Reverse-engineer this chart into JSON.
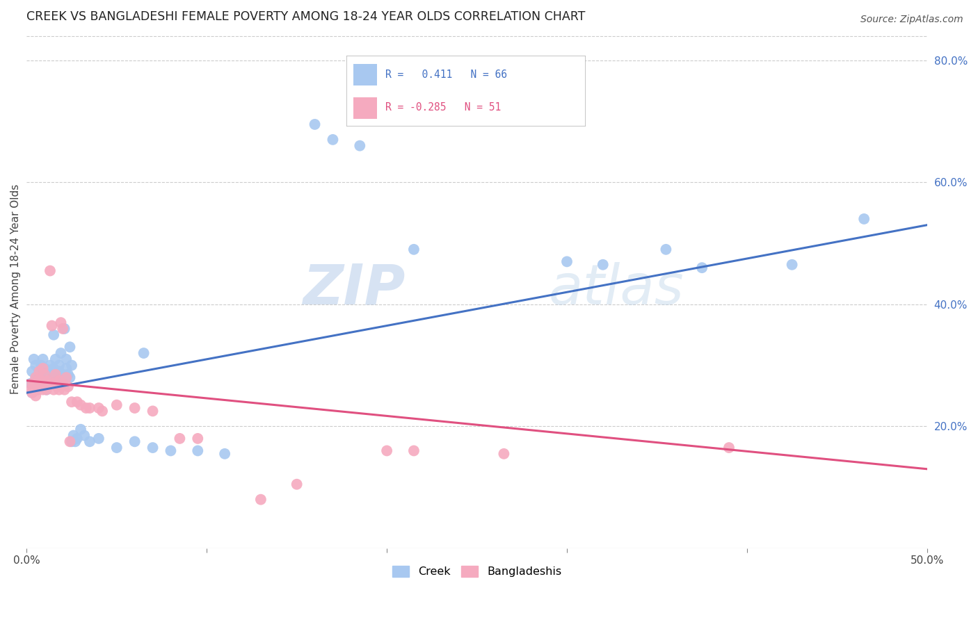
{
  "title": "CREEK VS BANGLADESHI FEMALE POVERTY AMONG 18-24 YEAR OLDS CORRELATION CHART",
  "source": "Source: ZipAtlas.com",
  "ylabel": "Female Poverty Among 18-24 Year Olds",
  "xlim": [
    0.0,
    0.5
  ],
  "ylim": [
    0.0,
    0.85
  ],
  "x_ticks": [
    0.0,
    0.1,
    0.2,
    0.3,
    0.4,
    0.5
  ],
  "y_ticks_right": [
    0.2,
    0.4,
    0.6,
    0.8
  ],
  "y_tick_labels_right": [
    "20.0%",
    "40.0%",
    "60.0%",
    "80.0%"
  ],
  "creek_color": "#A8C8F0",
  "bangladeshi_color": "#F5AABF",
  "creek_line_color": "#4472C4",
  "bangladeshi_line_color": "#E05080",
  "creek_R": 0.411,
  "creek_N": 66,
  "bangladeshi_R": -0.285,
  "bangladeshi_N": 51,
  "watermark_zip": "ZIP",
  "watermark_atlas": "atlas",
  "background_color": "#FFFFFF",
  "grid_color": "#CCCCCC",
  "creek_scatter": [
    [
      0.002,
      0.27
    ],
    [
      0.003,
      0.29
    ],
    [
      0.003,
      0.255
    ],
    [
      0.004,
      0.31
    ],
    [
      0.004,
      0.265
    ],
    [
      0.005,
      0.28
    ],
    [
      0.005,
      0.3
    ],
    [
      0.006,
      0.27
    ],
    [
      0.006,
      0.26
    ],
    [
      0.007,
      0.29
    ],
    [
      0.007,
      0.275
    ],
    [
      0.008,
      0.265
    ],
    [
      0.008,
      0.3
    ],
    [
      0.009,
      0.285
    ],
    [
      0.009,
      0.31
    ],
    [
      0.01,
      0.27
    ],
    [
      0.01,
      0.295
    ],
    [
      0.011,
      0.28
    ],
    [
      0.011,
      0.26
    ],
    [
      0.012,
      0.29
    ],
    [
      0.013,
      0.3
    ],
    [
      0.013,
      0.275
    ],
    [
      0.014,
      0.285
    ],
    [
      0.015,
      0.295
    ],
    [
      0.015,
      0.35
    ],
    [
      0.016,
      0.31
    ],
    [
      0.017,
      0.28
    ],
    [
      0.017,
      0.27
    ],
    [
      0.018,
      0.3
    ],
    [
      0.018,
      0.29
    ],
    [
      0.019,
      0.32
    ],
    [
      0.02,
      0.285
    ],
    [
      0.02,
      0.275
    ],
    [
      0.021,
      0.36
    ],
    [
      0.022,
      0.295
    ],
    [
      0.022,
      0.31
    ],
    [
      0.023,
      0.285
    ],
    [
      0.024,
      0.33
    ],
    [
      0.024,
      0.28
    ],
    [
      0.025,
      0.3
    ],
    [
      0.025,
      0.175
    ],
    [
      0.026,
      0.185
    ],
    [
      0.027,
      0.175
    ],
    [
      0.028,
      0.18
    ],
    [
      0.03,
      0.195
    ],
    [
      0.032,
      0.185
    ],
    [
      0.035,
      0.175
    ],
    [
      0.04,
      0.18
    ],
    [
      0.05,
      0.165
    ],
    [
      0.06,
      0.175
    ],
    [
      0.065,
      0.32
    ],
    [
      0.07,
      0.165
    ],
    [
      0.08,
      0.16
    ],
    [
      0.095,
      0.16
    ],
    [
      0.11,
      0.155
    ],
    [
      0.16,
      0.695
    ],
    [
      0.17,
      0.67
    ],
    [
      0.185,
      0.66
    ],
    [
      0.215,
      0.49
    ],
    [
      0.23,
      0.71
    ],
    [
      0.3,
      0.47
    ],
    [
      0.32,
      0.465
    ],
    [
      0.355,
      0.49
    ],
    [
      0.375,
      0.46
    ],
    [
      0.425,
      0.465
    ],
    [
      0.465,
      0.54
    ]
  ],
  "bangladeshi_scatter": [
    [
      0.002,
      0.26
    ],
    [
      0.003,
      0.255
    ],
    [
      0.003,
      0.27
    ],
    [
      0.004,
      0.265
    ],
    [
      0.005,
      0.28
    ],
    [
      0.005,
      0.25
    ],
    [
      0.006,
      0.275
    ],
    [
      0.006,
      0.26
    ],
    [
      0.007,
      0.29
    ],
    [
      0.007,
      0.265
    ],
    [
      0.008,
      0.275
    ],
    [
      0.009,
      0.295
    ],
    [
      0.009,
      0.26
    ],
    [
      0.01,
      0.27
    ],
    [
      0.01,
      0.285
    ],
    [
      0.011,
      0.26
    ],
    [
      0.012,
      0.275
    ],
    [
      0.013,
      0.27
    ],
    [
      0.013,
      0.455
    ],
    [
      0.014,
      0.365
    ],
    [
      0.015,
      0.26
    ],
    [
      0.016,
      0.27
    ],
    [
      0.016,
      0.285
    ],
    [
      0.017,
      0.265
    ],
    [
      0.018,
      0.26
    ],
    [
      0.018,
      0.275
    ],
    [
      0.019,
      0.37
    ],
    [
      0.02,
      0.36
    ],
    [
      0.02,
      0.27
    ],
    [
      0.021,
      0.26
    ],
    [
      0.022,
      0.28
    ],
    [
      0.023,
      0.265
    ],
    [
      0.024,
      0.175
    ],
    [
      0.025,
      0.24
    ],
    [
      0.028,
      0.24
    ],
    [
      0.03,
      0.235
    ],
    [
      0.033,
      0.23
    ],
    [
      0.035,
      0.23
    ],
    [
      0.04,
      0.23
    ],
    [
      0.042,
      0.225
    ],
    [
      0.05,
      0.235
    ],
    [
      0.06,
      0.23
    ],
    [
      0.07,
      0.225
    ],
    [
      0.085,
      0.18
    ],
    [
      0.095,
      0.18
    ],
    [
      0.13,
      0.08
    ],
    [
      0.15,
      0.105
    ],
    [
      0.2,
      0.16
    ],
    [
      0.215,
      0.16
    ],
    [
      0.265,
      0.155
    ],
    [
      0.39,
      0.165
    ]
  ]
}
